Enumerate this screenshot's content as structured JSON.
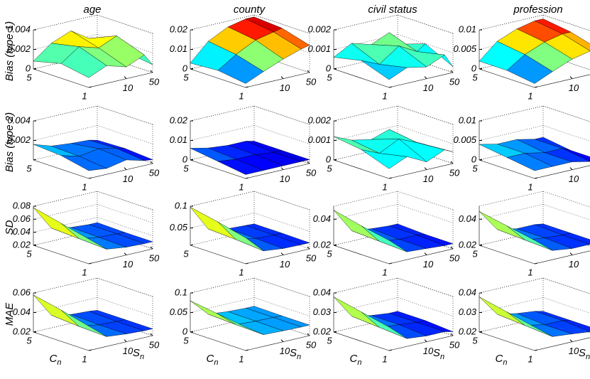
{
  "chart_data": [
    {
      "type": "surface",
      "title": "age",
      "zlabel": "Bias (type 1)",
      "zlim": [
        0,
        0.004
      ],
      "zticks": [
        0,
        0.002,
        0.004
      ],
      "cn": [
        1,
        3,
        5
      ],
      "sn": [
        1,
        3,
        10,
        30,
        50
      ],
      "cn_lim": [
        1,
        5
      ],
      "sn_lim": [
        1,
        50
      ],
      "sn_scale": "log",
      "cn_ticks": [
        5,
        1
      ],
      "sn_ticks": [
        10,
        50
      ],
      "z": [
        [
          0.001,
          0.0018,
          0.0012,
          0.002,
          0.0008
        ],
        [
          0.0015,
          0.0028,
          0.0022,
          0.003,
          0.0012
        ],
        [
          0.0008,
          0.0022,
          0.003,
          0.0018,
          0.001
        ]
      ]
    },
    {
      "type": "surface",
      "title": "county",
      "zlim": [
        0,
        0.02
      ],
      "zticks": [
        0,
        0.01,
        0.02
      ],
      "cn": [
        1,
        3,
        5
      ],
      "sn": [
        1,
        3,
        10,
        30,
        50
      ],
      "cn_lim": [
        1,
        5
      ],
      "sn_lim": [
        1,
        50
      ],
      "sn_scale": "log",
      "cn_ticks": [
        5,
        1
      ],
      "sn_ticks": [
        10,
        50
      ],
      "z": [
        [
          0.002,
          0.006,
          0.01,
          0.013,
          0.014
        ],
        [
          0.004,
          0.01,
          0.015,
          0.017,
          0.018
        ],
        [
          0.003,
          0.012,
          0.017,
          0.019,
          0.019
        ]
      ]
    },
    {
      "type": "surface",
      "title": "civil status",
      "zlim": [
        0,
        0.002
      ],
      "zticks": [
        0,
        0.001,
        0.002
      ],
      "cn": [
        1,
        3,
        5
      ],
      "sn": [
        1,
        3,
        10,
        30,
        50
      ],
      "cn_lim": [
        1,
        5
      ],
      "sn_lim": [
        1,
        50
      ],
      "sn_scale": "log",
      "cn_ticks": [
        5,
        1
      ],
      "sn_ticks": [
        10,
        50
      ],
      "z": [
        [
          0.0004,
          0.0008,
          0.0006,
          0.001,
          0.0003
        ],
        [
          0.0009,
          0.0005,
          0.0012,
          0.0007,
          0.001
        ],
        [
          0.0006,
          0.0011,
          0.0008,
          0.0012,
          0.0005
        ]
      ]
    },
    {
      "type": "surface",
      "title": "profession",
      "zlim": [
        0,
        0.01
      ],
      "zticks": [
        0,
        0.005,
        0.01
      ],
      "cn": [
        1,
        3,
        5
      ],
      "sn": [
        1,
        3,
        10,
        30,
        50
      ],
      "cn_lim": [
        1,
        5
      ],
      "sn_lim": [
        1,
        50
      ],
      "sn_scale": "log",
      "cn_ticks": [
        5,
        1
      ],
      "sn_ticks": [
        10,
        50
      ],
      "z": [
        [
          0.001,
          0.003,
          0.005,
          0.006,
          0.006
        ],
        [
          0.002,
          0.005,
          0.007,
          0.008,
          0.008
        ],
        [
          0.002,
          0.006,
          0.008,
          0.009,
          0.009
        ]
      ]
    },
    {
      "type": "surface",
      "zlabel": "Bias (type 2)",
      "zlim": [
        0,
        0.004
      ],
      "zticks": [
        0.002,
        0.004
      ],
      "cn": [
        1,
        3,
        5
      ],
      "sn": [
        1,
        3,
        10,
        30,
        50
      ],
      "cn_lim": [
        1,
        5
      ],
      "sn_lim": [
        1,
        50
      ],
      "sn_scale": "log",
      "cn_ticks": [
        5,
        1
      ],
      "sn_ticks": [
        10,
        50
      ],
      "z": [
        [
          0.0008,
          0.0006,
          0.001,
          0.0005,
          0.0004
        ],
        [
          0.0014,
          0.0009,
          0.0012,
          0.0008,
          0.0006
        ],
        [
          0.0016,
          0.001,
          0.0008,
          0.0007,
          0.0005
        ]
      ]
    },
    {
      "type": "surface",
      "zlim": [
        0,
        0.02
      ],
      "zticks": [
        0,
        0.01,
        0.02
      ],
      "cn": [
        1,
        3,
        5
      ],
      "sn": [
        1,
        3,
        10,
        30,
        50
      ],
      "cn_lim": [
        1,
        5
      ],
      "sn_lim": [
        1,
        50
      ],
      "sn_scale": "log",
      "cn_ticks": [
        5,
        1
      ],
      "sn_ticks": [
        10,
        50
      ],
      "z": [
        [
          0.002,
          0.002,
          0.002,
          0.002,
          0.002
        ],
        [
          0.004,
          0.003,
          0.003,
          0.002,
          0.002
        ],
        [
          0.006,
          0.004,
          0.003,
          0.003,
          0.002
        ]
      ]
    },
    {
      "type": "surface",
      "zlim": [
        0,
        0.002
      ],
      "zticks": [
        0,
        0.001,
        0.002
      ],
      "cn": [
        1,
        3,
        5
      ],
      "sn": [
        1,
        3,
        10,
        30,
        50
      ],
      "cn_lim": [
        1,
        5
      ],
      "sn_lim": [
        1,
        50
      ],
      "sn_scale": "log",
      "cn_ticks": [
        5,
        1
      ],
      "sn_ticks": [
        10,
        50
      ],
      "z": [
        [
          0.0005,
          0.0009,
          0.0004,
          0.0008,
          0.0006
        ],
        [
          0.001,
          0.0006,
          0.0011,
          0.0007,
          0.0005
        ],
        [
          0.0012,
          0.0008,
          0.0006,
          0.0009,
          0.0004
        ]
      ]
    },
    {
      "type": "surface",
      "zlim": [
        0,
        0.01
      ],
      "zticks": [
        0,
        0.005,
        0.01
      ],
      "cn": [
        1,
        3,
        5
      ],
      "sn": [
        1,
        3,
        10,
        30,
        50
      ],
      "cn_lim": [
        1,
        5
      ],
      "sn_lim": [
        1,
        50
      ],
      "sn_scale": "log",
      "cn_ticks": [
        5,
        1
      ],
      "sn_ticks": [
        10,
        50
      ],
      "z": [
        [
          0.002,
          0.002,
          0.002,
          0.001,
          0.001
        ],
        [
          0.003,
          0.003,
          0.002,
          0.002,
          0.001
        ],
        [
          0.004,
          0.003,
          0.003,
          0.002,
          0.002
        ]
      ]
    },
    {
      "type": "surface",
      "zlabel": "SD",
      "zlim": [
        0.02,
        0.08
      ],
      "zticks": [
        0.02,
        0.04,
        0.06,
        0.08
      ],
      "cn": [
        1,
        3,
        5
      ],
      "sn": [
        1,
        3,
        10,
        30,
        50
      ],
      "cn_lim": [
        1,
        5
      ],
      "sn_lim": [
        1,
        50
      ],
      "sn_scale": "log",
      "cn_ticks": [
        5,
        1
      ],
      "sn_ticks": [
        10,
        50
      ],
      "z": [
        [
          0.058,
          0.036,
          0.032,
          0.031,
          0.031
        ],
        [
          0.068,
          0.038,
          0.033,
          0.032,
          0.031
        ],
        [
          0.078,
          0.04,
          0.034,
          0.032,
          0.032
        ]
      ]
    },
    {
      "type": "surface",
      "zlim": [
        0.01,
        0.1
      ],
      "zticks": [
        0.05,
        0.1
      ],
      "cn": [
        1,
        3,
        5
      ],
      "sn": [
        1,
        3,
        10,
        30,
        50
      ],
      "cn_lim": [
        1,
        5
      ],
      "sn_lim": [
        1,
        50
      ],
      "sn_scale": "log",
      "cn_ticks": [
        5,
        1
      ],
      "sn_ticks": [
        10,
        50
      ],
      "z": [
        [
          0.07,
          0.03,
          0.025,
          0.024,
          0.024
        ],
        [
          0.085,
          0.035,
          0.027,
          0.025,
          0.025
        ],
        [
          0.098,
          0.038,
          0.028,
          0.026,
          0.025
        ]
      ]
    },
    {
      "type": "surface",
      "zlim": [
        0.02,
        0.05
      ],
      "zticks": [
        0.02,
        0.04
      ],
      "cn": [
        1,
        3,
        5
      ],
      "sn": [
        1,
        3,
        10,
        30,
        50
      ],
      "cn_lim": [
        1,
        5
      ],
      "sn_lim": [
        1,
        50
      ],
      "sn_scale": "log",
      "cn_ticks": [
        5,
        1
      ],
      "sn_ticks": [
        10,
        50
      ],
      "z": [
        [
          0.038,
          0.026,
          0.025,
          0.024,
          0.024
        ],
        [
          0.042,
          0.027,
          0.025,
          0.025,
          0.024
        ],
        [
          0.047,
          0.028,
          0.026,
          0.025,
          0.025
        ]
      ]
    },
    {
      "type": "surface",
      "zlim": [
        0.02,
        0.05
      ],
      "zticks": [
        0.02,
        0.04
      ],
      "cn": [
        1,
        3,
        5
      ],
      "sn": [
        1,
        3,
        10,
        30,
        50
      ],
      "cn_lim": [
        1,
        5
      ],
      "sn_lim": [
        1,
        50
      ],
      "sn_scale": "log",
      "cn_ticks": [
        5,
        1
      ],
      "sn_ticks": [
        10,
        50
      ],
      "z": [
        [
          0.038,
          0.027,
          0.025,
          0.025,
          0.025
        ],
        [
          0.042,
          0.028,
          0.026,
          0.025,
          0.025
        ],
        [
          0.046,
          0.029,
          0.026,
          0.026,
          0.025
        ]
      ]
    },
    {
      "type": "surface",
      "zlabel": "MAE",
      "xlabel": {
        "base": "C",
        "sub": "n"
      },
      "ylabel": {
        "base": "S",
        "sub": "n"
      },
      "zlim": [
        0.02,
        0.06
      ],
      "zticks": [
        0.02,
        0.04,
        0.06
      ],
      "cn": [
        1,
        3,
        5
      ],
      "sn": [
        1,
        3,
        10,
        30,
        50
      ],
      "cn_lim": [
        1,
        5
      ],
      "sn_lim": [
        1,
        50
      ],
      "sn_scale": "log",
      "cn_ticks": [
        5,
        1
      ],
      "sn_ticks": [
        10,
        50
      ],
      "z": [
        [
          0.045,
          0.03,
          0.028,
          0.027,
          0.027
        ],
        [
          0.052,
          0.031,
          0.028,
          0.027,
          0.027
        ],
        [
          0.058,
          0.033,
          0.029,
          0.028,
          0.027
        ]
      ]
    },
    {
      "type": "surface",
      "xlabel": {
        "base": "C",
        "sub": "n"
      },
      "ylabel": {
        "base": "S",
        "sub": "n"
      },
      "zlim": [
        0,
        0.1
      ],
      "zticks": [
        0,
        0.05,
        0.1
      ],
      "cn": [
        1,
        3,
        5
      ],
      "sn": [
        1,
        3,
        10,
        30,
        50
      ],
      "cn_lim": [
        1,
        5
      ],
      "sn_lim": [
        1,
        50
      ],
      "sn_scale": "log",
      "cn_ticks": [
        5,
        1
      ],
      "sn_ticks": [
        10,
        50
      ],
      "z": [
        [
          0.06,
          0.03,
          0.028,
          0.027,
          0.027
        ],
        [
          0.07,
          0.032,
          0.029,
          0.028,
          0.027
        ],
        [
          0.08,
          0.035,
          0.03,
          0.028,
          0.028
        ]
      ]
    },
    {
      "type": "surface",
      "xlabel": {
        "base": "C",
        "sub": "n"
      },
      "ylabel": {
        "base": "S",
        "sub": "n"
      },
      "zlim": [
        0.02,
        0.04
      ],
      "zticks": [
        0.02,
        0.03,
        0.04
      ],
      "cn": [
        1,
        3,
        5
      ],
      "sn": [
        1,
        3,
        10,
        30,
        50
      ],
      "cn_lim": [
        1,
        5
      ],
      "sn_lim": [
        1,
        50
      ],
      "sn_scale": "log",
      "cn_ticks": [
        5,
        1
      ],
      "sn_ticks": [
        10,
        50
      ],
      "z": [
        [
          0.032,
          0.024,
          0.023,
          0.023,
          0.022
        ],
        [
          0.035,
          0.025,
          0.024,
          0.023,
          0.023
        ],
        [
          0.038,
          0.026,
          0.024,
          0.023,
          0.023
        ]
      ]
    },
    {
      "type": "surface",
      "xlabel": {
        "base": "C",
        "sub": "n"
      },
      "ylabel": {
        "base": "S",
        "sub": "n"
      },
      "zlim": [
        0.02,
        0.04
      ],
      "zticks": [
        0.02,
        0.03,
        0.04
      ],
      "cn": [
        1,
        3,
        5
      ],
      "sn": [
        1,
        3,
        10,
        30,
        50
      ],
      "cn_lim": [
        1,
        5
      ],
      "sn_lim": [
        1,
        50
      ],
      "sn_scale": "log",
      "cn_ticks": [
        5,
        1
      ],
      "sn_ticks": [
        10,
        50
      ],
      "z": [
        [
          0.032,
          0.025,
          0.024,
          0.023,
          0.023
        ],
        [
          0.035,
          0.026,
          0.024,
          0.024,
          0.023
        ],
        [
          0.038,
          0.027,
          0.025,
          0.024,
          0.023
        ]
      ]
    }
  ]
}
